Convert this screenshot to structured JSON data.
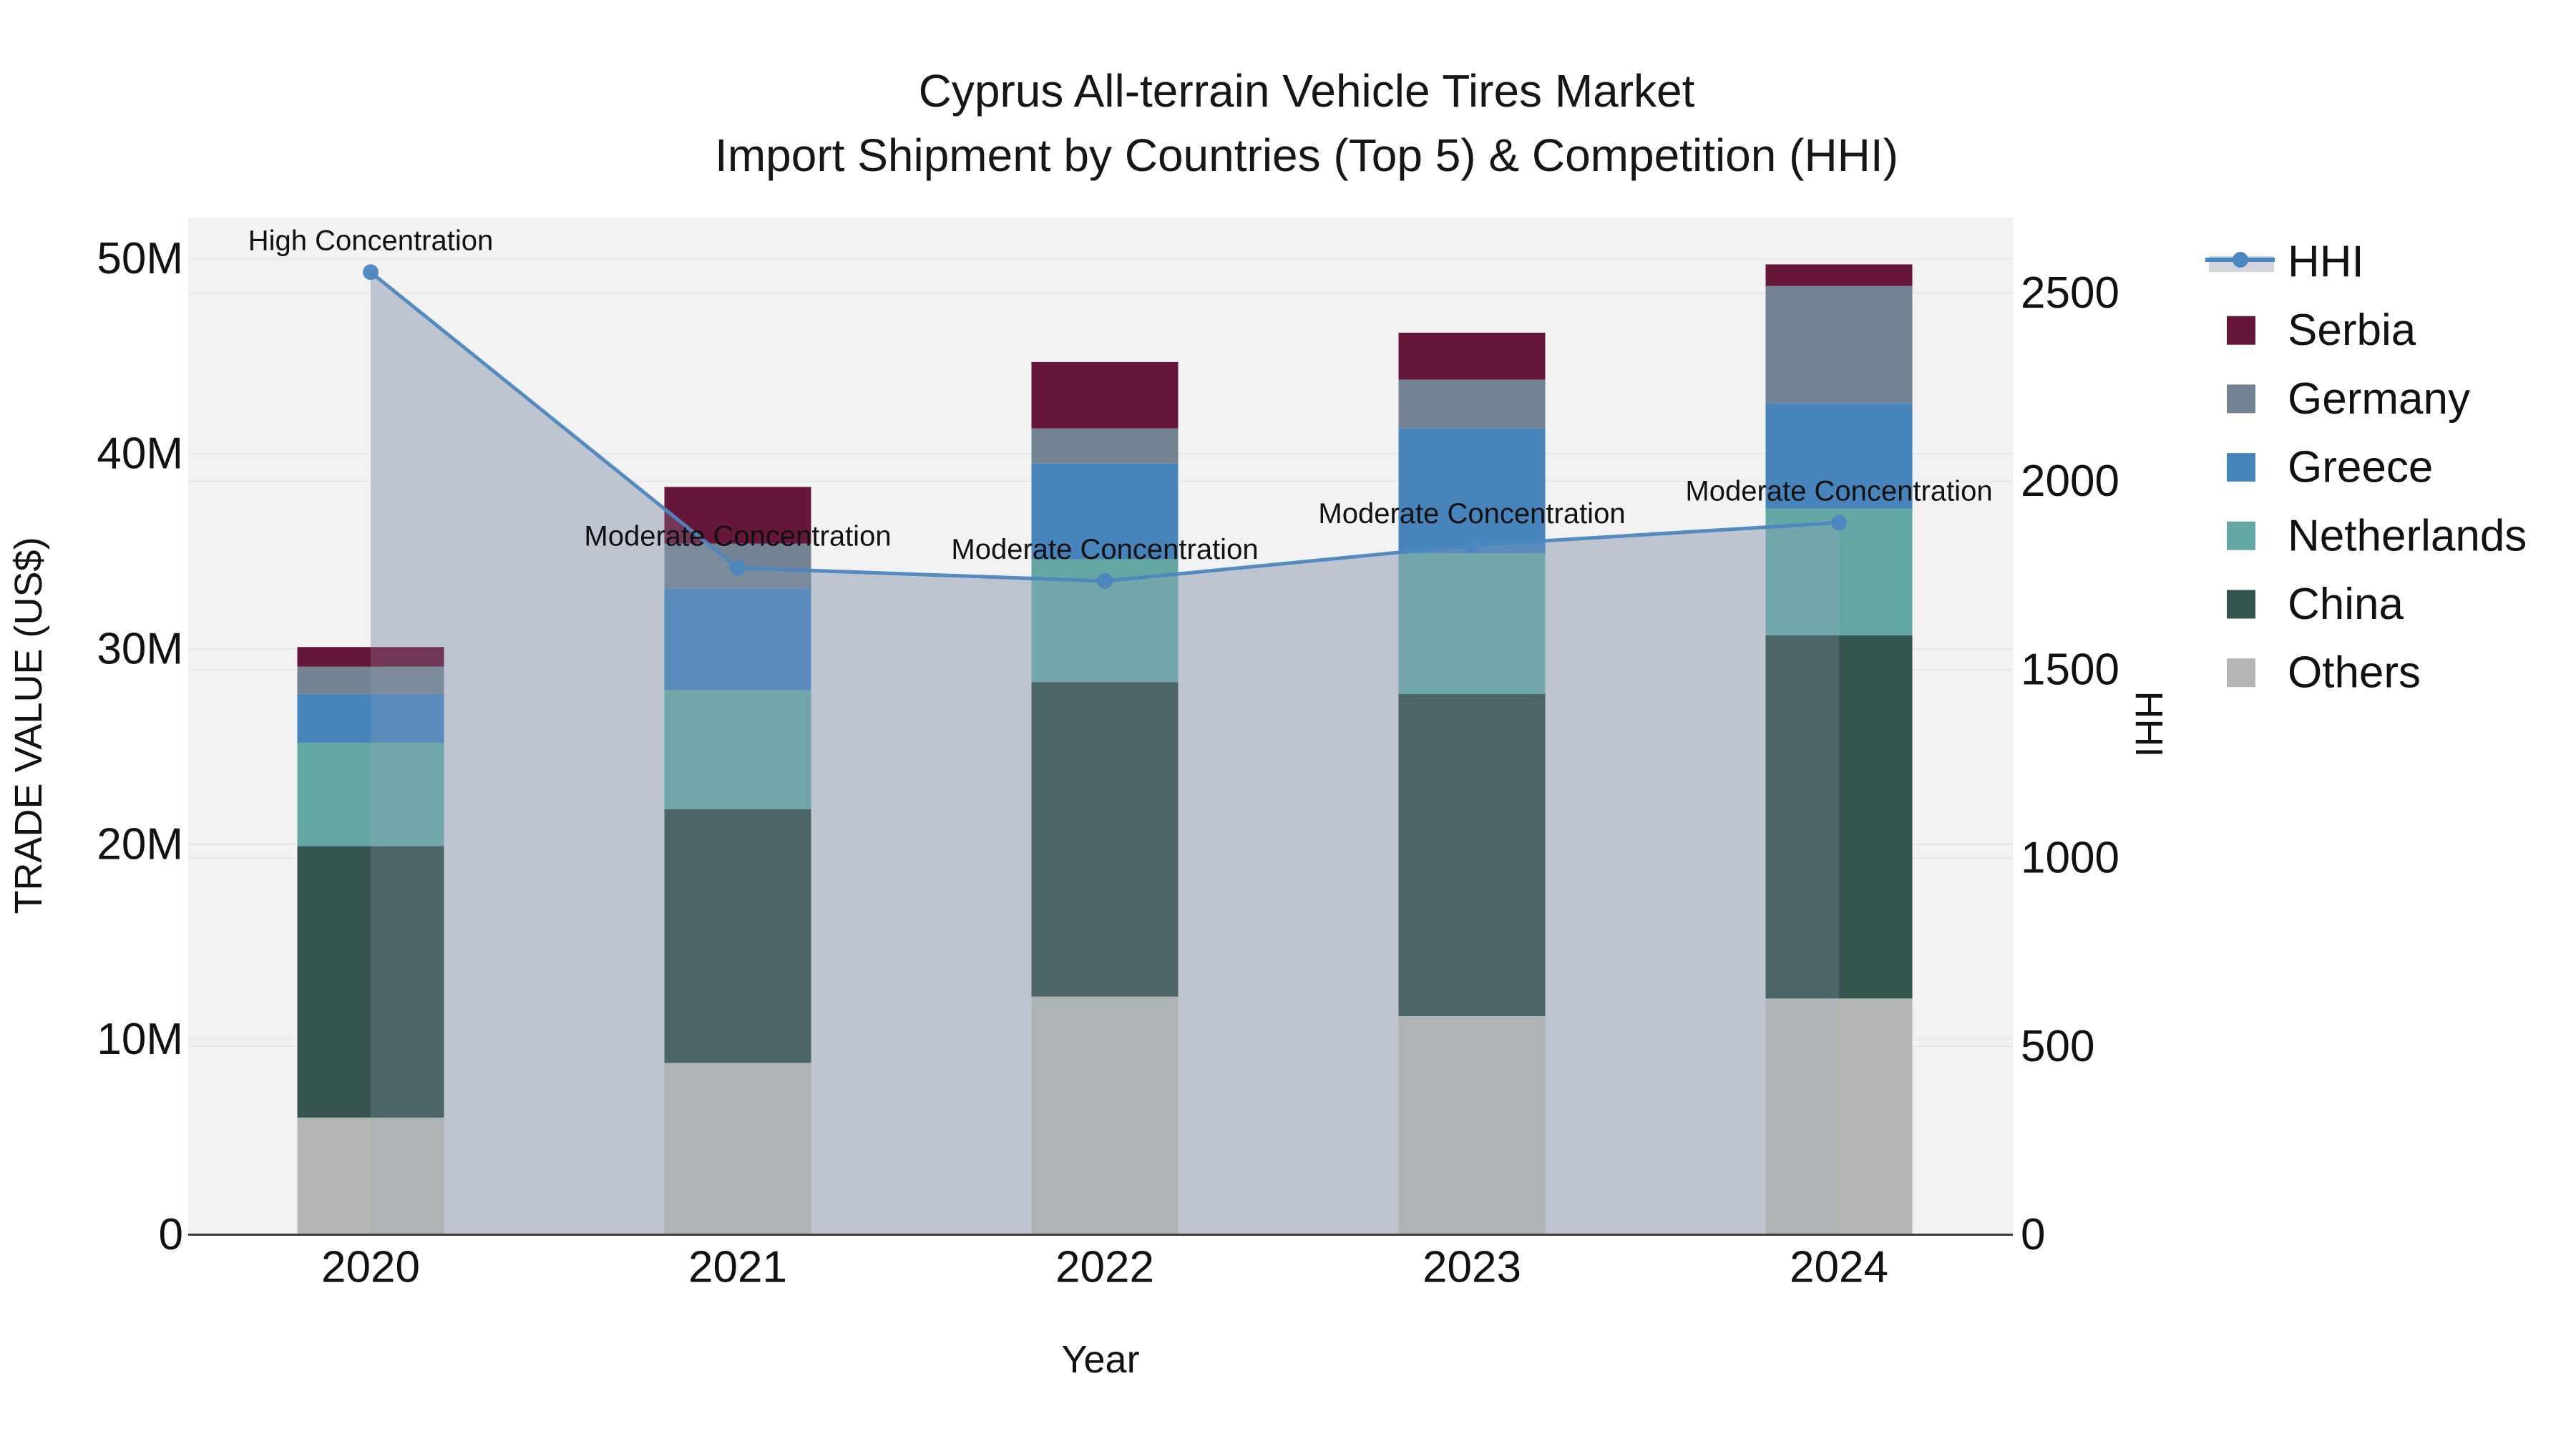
{
  "page": {
    "title_line1": "Cyprus All-terrain Vehicle Tires Market",
    "title_line2": "Import Shipment by Countries (Top 5) & Competition (HHI)"
  },
  "chart_data": {
    "type": "bar",
    "subtype": "stacked-bars-with-hhi-line",
    "title": "Cyprus All-terrain Vehicle Tires Market",
    "subtitle": "Import Shipment by Countries (Top 5) & Competition (HHI)",
    "xlabel": "Year",
    "ylabel_left": "TRADE VALUE (US$)",
    "ylabel_right": "HHI",
    "categories": [
      "2020",
      "2021",
      "2022",
      "2023",
      "2024"
    ],
    "bar_unit": "millions US$",
    "series": [
      {
        "name": "Others",
        "color": "#B3B6B3",
        "values": [
          6.0,
          8.8,
          12.2,
          11.2,
          12.1
        ]
      },
      {
        "name": "China",
        "color": "#35534F",
        "values": [
          13.9,
          13.0,
          16.1,
          16.5,
          18.6
        ]
      },
      {
        "name": "Netherlands",
        "color": "#65A7A4",
        "values": [
          5.3,
          6.1,
          6.3,
          7.2,
          6.5
        ]
      },
      {
        "name": "Greece",
        "color": "#4684BB",
        "values": [
          2.5,
          5.2,
          4.9,
          6.4,
          5.4
        ]
      },
      {
        "name": "Germany",
        "color": "#738393",
        "values": [
          1.4,
          2.3,
          1.8,
          2.5,
          6.0
        ]
      },
      {
        "name": "Serbia",
        "color": "#661639",
        "values": [
          1.0,
          2.9,
          3.4,
          2.4,
          1.1
        ]
      }
    ],
    "line_series": {
      "name": "HHI",
      "color": "#4C86C0",
      "area_fill": "#C8CDD5",
      "area_overlay": "rgba(160,170,190,0.22)",
      "values": [
        2555,
        1770,
        1735,
        1830,
        1890
      ]
    },
    "annotations": [
      "High Concentration",
      "Moderate Concentration",
      "Moderate Concentration",
      "Moderate Concentration",
      "Moderate Concentration"
    ],
    "axis_left": {
      "max_value": 52.1,
      "ticks": [
        {
          "label": "0",
          "v": 0
        },
        {
          "label": "10M",
          "v": 10
        },
        {
          "label": "20M",
          "v": 20
        },
        {
          "label": "30M",
          "v": 30
        },
        {
          "label": "40M",
          "v": 40
        },
        {
          "label": "50M",
          "v": 50
        }
      ]
    },
    "axis_right": {
      "max_value": 2700,
      "ticks": [
        {
          "label": "0",
          "v": 0
        },
        {
          "label": "500",
          "v": 500
        },
        {
          "label": "1000",
          "v": 1000
        },
        {
          "label": "1500",
          "v": 1500
        },
        {
          "label": "2000",
          "v": 2000
        },
        {
          "label": "2500",
          "v": 2500
        }
      ]
    },
    "legend": [
      "HHI",
      "Serbia",
      "Germany",
      "Greece",
      "Netherlands",
      "China",
      "Others"
    ],
    "colors": {
      "plot_background": "#F2F2F3",
      "gridline": "#E7E8EB",
      "axis_line": "#3C3C3C",
      "legend_band": "#D2D6DC",
      "text": "#111111"
    }
  }
}
